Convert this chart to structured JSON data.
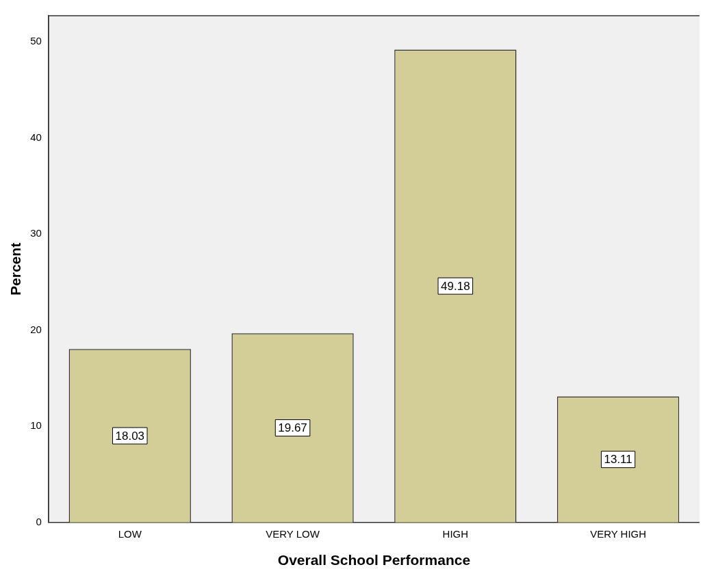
{
  "chart_data": {
    "type": "bar",
    "xlabel": "Overall School Performance",
    "ylabel": "Percent",
    "categories": [
      "LOW",
      "VERY LOW",
      "HIGH",
      "VERY HIGH"
    ],
    "values": [
      18.03,
      19.67,
      49.18,
      13.11
    ],
    "color": "#d3ce97",
    "ylim": [
      0,
      52.7
    ],
    "yticks": [
      0,
      10,
      20,
      30,
      40,
      50
    ],
    "grid": false,
    "data_labels": true
  }
}
